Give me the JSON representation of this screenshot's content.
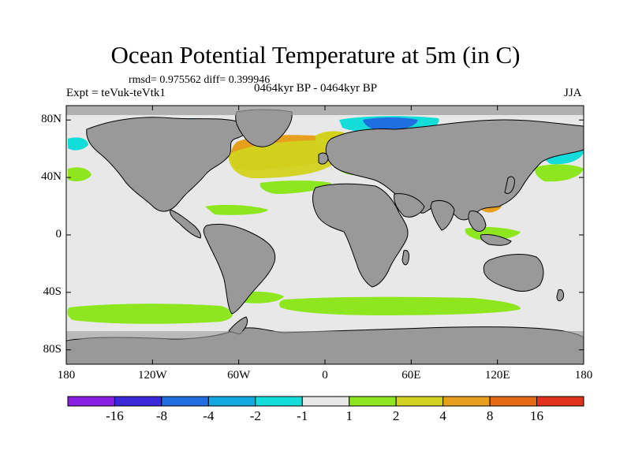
{
  "header": {
    "title": "Ocean Potential Temperature at 5m (in C)",
    "stats": "rmsd= 0.975562 diff= 0.399946",
    "experiment": "Expt = teVuk-teVtk1",
    "period": "0464kyr BP - 0464kyr BP",
    "season": "JJA"
  },
  "map": {
    "projection": "cylindrical-equidistant",
    "lon_range": [
      -180,
      180
    ],
    "lat_range": [
      -90,
      90
    ],
    "x_ticks": [
      {
        "value": -180,
        "label": "180"
      },
      {
        "value": -120,
        "label": "120W"
      },
      {
        "value": -60,
        "label": "60W"
      },
      {
        "value": 0,
        "label": "0"
      },
      {
        "value": 60,
        "label": "60E"
      },
      {
        "value": 120,
        "label": "120E"
      },
      {
        "value": 180,
        "label": "180"
      }
    ],
    "y_ticks": [
      {
        "value": 80,
        "label": "80N"
      },
      {
        "value": 40,
        "label": "40N"
      },
      {
        "value": 0,
        "label": "0"
      },
      {
        "value": -40,
        "label": "40S"
      },
      {
        "value": -80,
        "label": "80S"
      }
    ],
    "colors": {
      "land": "#999999",
      "ocean_neutral": "#e8e8e8",
      "coastline": "#000000"
    }
  },
  "colorbar": {
    "labels": [
      "-16",
      "-8",
      "-4",
      "-2",
      "-1",
      "1",
      "2",
      "4",
      "8",
      "16"
    ],
    "colors": [
      "#8a1ee0",
      "#3b28d8",
      "#1f6fe0",
      "#14a8e0",
      "#14dcd8",
      "#e8e8e8",
      "#8ee61e",
      "#d2d21e",
      "#e6a01e",
      "#e66a14",
      "#e0321e"
    ]
  }
}
